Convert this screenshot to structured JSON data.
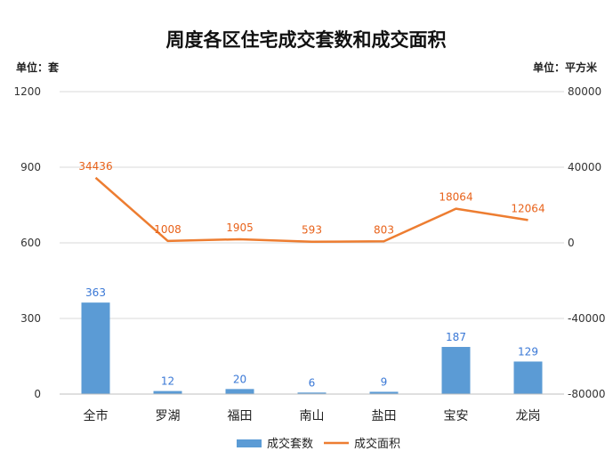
{
  "title": "周度各区住宅成交套数和成交面积",
  "unit_left": "单位：套",
  "unit_right": "单位：平方米",
  "colors": {
    "bar": "#5b9bd5",
    "line": "#ed7d31",
    "bar_label": "#3a78d6",
    "line_label": "#e8621a"
  },
  "chart_data": {
    "type": "bar",
    "categories": [
      "全市",
      "罗湖",
      "福田",
      "南山",
      "盐田",
      "宝安",
      "龙岗"
    ],
    "series": [
      {
        "name": "成交套数",
        "type": "bar",
        "axis": "left",
        "values": [
          363,
          12,
          20,
          6,
          9,
          187,
          129
        ]
      },
      {
        "name": "成交面积",
        "type": "line",
        "axis": "right",
        "values": [
          34436,
          1008,
          1905,
          593,
          803,
          18064,
          12064
        ]
      }
    ],
    "y_left": {
      "lim": [
        0,
        1200
      ],
      "ticks": [
        0,
        300,
        600,
        900,
        1200
      ]
    },
    "y_right": {
      "lim": [
        -80000,
        80000
      ],
      "ticks": [
        -80000,
        -40000,
        0,
        40000,
        80000
      ]
    },
    "grid": true,
    "legend": "bottom"
  }
}
